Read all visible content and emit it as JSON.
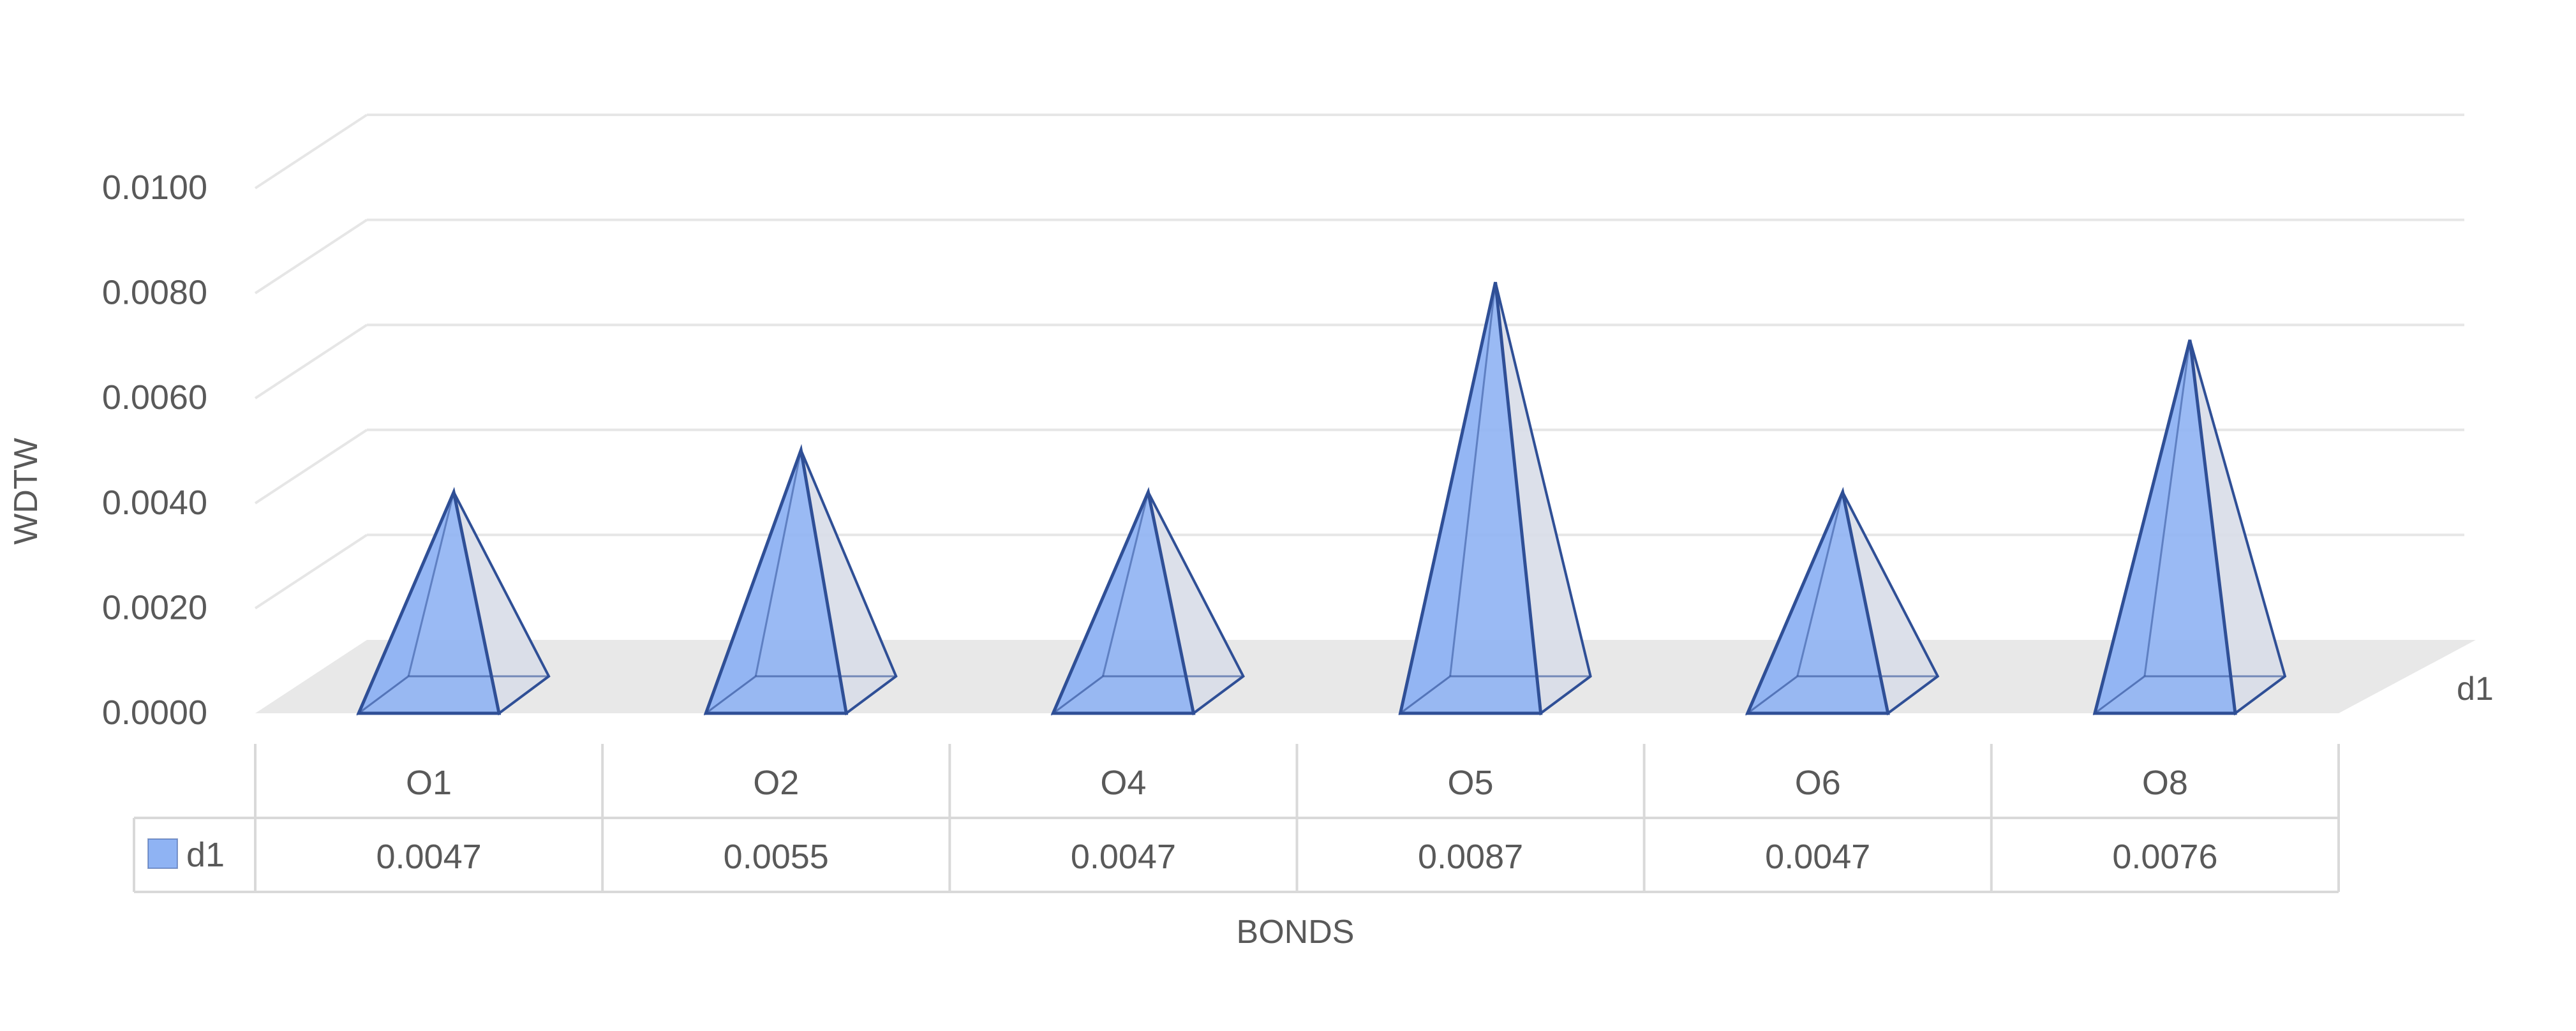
{
  "chart_data": {
    "type": "bar",
    "bar_shape": "pyramid-3d",
    "title": "",
    "xlabel": "BONDS",
    "ylabel": "WDTW",
    "categories": [
      "O1",
      "O2",
      "O4",
      "O5",
      "O6",
      "O8"
    ],
    "series": [
      {
        "name": "d1",
        "values": [
          0.0047,
          0.0055,
          0.0047,
          0.0087,
          0.0047,
          0.0076
        ],
        "value_labels": [
          "0.0047",
          "0.0055",
          "0.0047",
          "0.0087",
          "0.0047",
          "0.0076"
        ]
      }
    ],
    "ylim": [
      0,
      0.01
    ],
    "yticks": [
      "0.0000",
      "0.0020",
      "0.0040",
      "0.0060",
      "0.0080",
      "0.0100"
    ],
    "depth_axis_label": "d1",
    "grid": true,
    "legend": "data-table",
    "colors": {
      "fill_front": "#8fb3f3",
      "fill_side": "#d8dde8",
      "edge": "#2f4f96",
      "floor": "#e8e8e8",
      "grid": "#e6e6e6",
      "table_border": "#d9d9d9",
      "text": "#595959"
    }
  }
}
